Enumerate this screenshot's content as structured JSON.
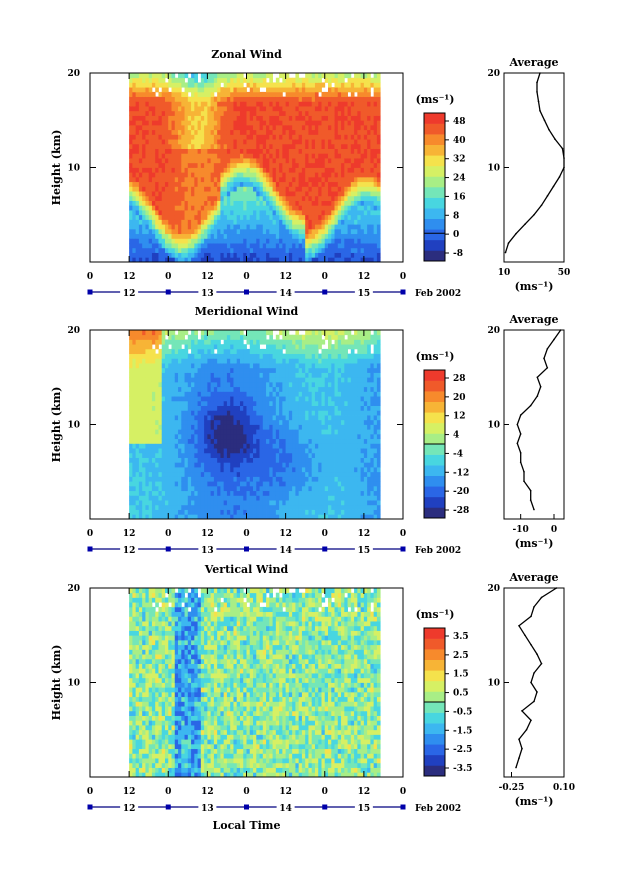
{
  "figure": {
    "date_suffix": "Feb 2002",
    "xlabel": "Local Time",
    "ylabel": "Height (km)",
    "unit": "(ms⁻¹)",
    "avg_title": "Average",
    "avg_xunit": "(ms⁻¹)",
    "time_ticks": [
      "0",
      "12",
      "0",
      "12",
      "0",
      "12",
      "0",
      "12",
      "0"
    ],
    "day_ticks": [
      "12",
      "13",
      "14",
      "15"
    ],
    "height_ticks": [
      "20",
      "10"
    ]
  },
  "colors": {
    "palette": [
      "#2b2d7e",
      "#2040c0",
      "#2a66e6",
      "#2f8eef",
      "#3cb7f0",
      "#48d6e0",
      "#74e6b8",
      "#a8ee86",
      "#d6f064",
      "#f5e24c",
      "#f7b436",
      "#f78a2c",
      "#f05a2a",
      "#ee3a2c"
    ]
  },
  "chart_data": [
    {
      "type": "heatmap",
      "id": "zonal",
      "title": "Zonal Wind",
      "xlabel": "",
      "ylabel": "Height (km)",
      "x_range_hours": [
        0,
        96
      ],
      "data_x_range_hours": [
        12,
        89
      ],
      "ylim": [
        0,
        20
      ],
      "colorbar_ticks": [
        "48",
        "40",
        "32",
        "24",
        "16",
        "8",
        "0",
        "-8"
      ],
      "colorbar_range": [
        -12,
        52
      ],
      "average": {
        "title": "Average",
        "xlim": [
          10,
          50
        ],
        "xticks": [
          "10",
          "50"
        ],
        "height": [
          1,
          2,
          3,
          4,
          5,
          6,
          7,
          8,
          9,
          10,
          11,
          12,
          13,
          14,
          15,
          16,
          17,
          18,
          19,
          20
        ],
        "values": [
          11,
          13,
          18,
          24,
          30,
          35,
          39,
          43,
          47,
          50,
          50,
          49,
          44,
          40,
          37,
          34,
          33,
          32,
          32,
          34
        ]
      }
    },
    {
      "type": "heatmap",
      "id": "meridional",
      "title": "Meridional Wind",
      "xlabel": "",
      "ylabel": "Height (km)",
      "x_range_hours": [
        0,
        96
      ],
      "data_x_range_hours": [
        12,
        89
      ],
      "ylim": [
        0,
        20
      ],
      "colorbar_ticks": [
        "28",
        "20",
        "12",
        "4",
        "-4",
        "-12",
        "-20",
        "-28"
      ],
      "colorbar_range": [
        -32,
        32
      ],
      "average": {
        "title": "Average",
        "xlim": [
          -15,
          3
        ],
        "xticks": [
          "-10",
          "0"
        ],
        "height": [
          1,
          2,
          3,
          4,
          5,
          6,
          7,
          8,
          9,
          10,
          11,
          12,
          13,
          14,
          15,
          16,
          17,
          18,
          19,
          20
        ],
        "values": [
          -6,
          -7,
          -7,
          -9,
          -9,
          -10,
          -10,
          -11,
          -10,
          -11,
          -10,
          -7,
          -5,
          -4,
          -5,
          -2,
          -3,
          -2,
          0,
          2
        ]
      }
    },
    {
      "type": "heatmap",
      "id": "vertical",
      "title": "Vertical Wind",
      "xlabel": "Local Time",
      "ylabel": "Height (km)",
      "x_range_hours": [
        0,
        96
      ],
      "data_x_range_hours": [
        12,
        89
      ],
      "ylim": [
        0,
        20
      ],
      "colorbar_ticks": [
        "3.5",
        "2.5",
        "1.5",
        "0.5",
        "-0.5",
        "-1.5",
        "-2.5",
        "-3.5"
      ],
      "colorbar_range": [
        -4,
        4
      ],
      "average": {
        "title": "Average",
        "xlim": [
          -0.3,
          0.1
        ],
        "xticks": [
          "-0.25",
          "0.10"
        ],
        "height": [
          1,
          2,
          3,
          4,
          5,
          6,
          7,
          8,
          9,
          10,
          11,
          12,
          13,
          14,
          15,
          16,
          17,
          18,
          19,
          20
        ],
        "values": [
          -0.22,
          -0.2,
          -0.18,
          -0.2,
          -0.15,
          -0.12,
          -0.18,
          -0.1,
          -0.08,
          -0.12,
          -0.1,
          -0.05,
          -0.08,
          -0.12,
          -0.16,
          -0.2,
          -0.12,
          -0.1,
          -0.05,
          0.05
        ]
      }
    }
  ]
}
